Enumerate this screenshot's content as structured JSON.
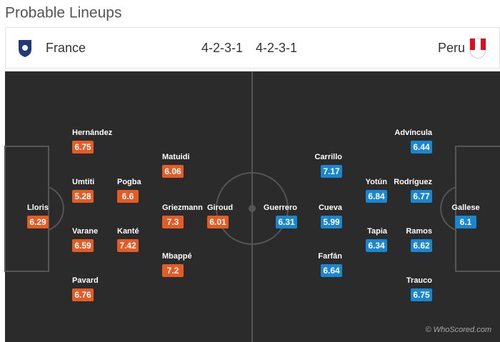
{
  "title": "Probable Lineups",
  "header": {
    "home_team": "France",
    "home_formation": "4-2-3-1",
    "away_formation": "4-2-3-1",
    "away_team": "Peru"
  },
  "home_players": [
    {
      "name": "Lloris",
      "rating": 6.29
    },
    {
      "name": "Hernández",
      "rating": 6.75
    },
    {
      "name": "Umtiti",
      "rating": 5.28
    },
    {
      "name": "Varane",
      "rating": 6.59
    },
    {
      "name": "Pavard",
      "rating": 6.76
    },
    {
      "name": "Pogba",
      "rating": 6.6
    },
    {
      "name": "Kanté",
      "rating": 7.42
    },
    {
      "name": "Matuidi",
      "rating": 6.06
    },
    {
      "name": "Griezmann",
      "rating": 7.3
    },
    {
      "name": "Mbappé",
      "rating": 7.2
    },
    {
      "name": "Giroud",
      "rating": 6.01
    }
  ],
  "away_players": [
    {
      "name": "Gallese",
      "rating": 6.1
    },
    {
      "name": "Advíncula",
      "rating": 6.44
    },
    {
      "name": "Rodríguez",
      "rating": 6.77
    },
    {
      "name": "Ramos",
      "rating": 6.62
    },
    {
      "name": "Trauco",
      "rating": 6.75
    },
    {
      "name": "Yotún",
      "rating": 6.84
    },
    {
      "name": "Tapia",
      "rating": 6.34
    },
    {
      "name": "Carrillo",
      "rating": 7.17
    },
    {
      "name": "Cueva",
      "rating": 5.99
    },
    {
      "name": "Farfán",
      "rating": 6.64
    },
    {
      "name": "Guerrero",
      "rating": 6.31
    }
  ],
  "footer": "© WhoScored.com"
}
